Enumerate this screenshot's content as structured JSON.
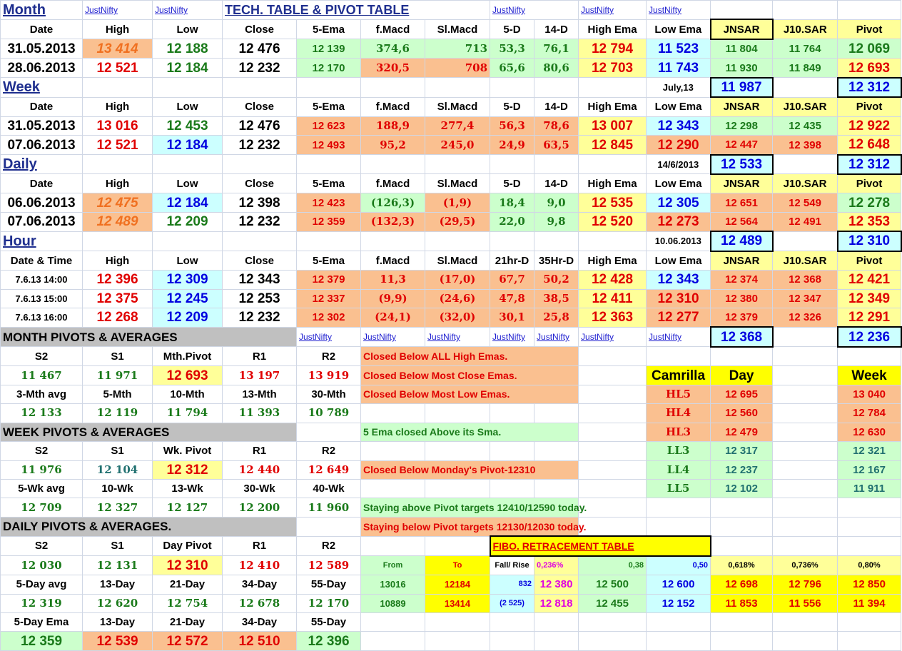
{
  "links": {
    "justnifty": "JustNifty"
  },
  "title": "TECH. TABLE   &  PIVOT TABLE",
  "sections": {
    "month": "Month",
    "week": "Week",
    "daily": "Daily",
    "hour": "Hour"
  },
  "headers": {
    "date": "Date",
    "datetime": "Date & Time",
    "high": "High",
    "low": "Low",
    "close": "Close",
    "ema5": "5-Ema",
    "fmacd": "f.Macd",
    "slmacd": "Sl.Macd",
    "d5": "5-D",
    "d14": "14-D",
    "hr21": "21hr-D",
    "hr35": "35Hr-D",
    "highema": "High Ema",
    "lowema": "Low Ema",
    "jnsar": "JNSAR",
    "j10sar": "J10.SAR",
    "pivot": "Pivot"
  },
  "month_rows": [
    [
      "31.05.2013",
      "13 414",
      "12 188",
      "12 476",
      "12 139",
      "374,6",
      "713",
      "53,3",
      "76,1",
      "12 794",
      "11 523",
      "11 804",
      "11 764",
      "12 069"
    ],
    [
      "28.06.2013",
      "12 521",
      "12 184",
      "12 232",
      "12 170",
      "320,5",
      "708",
      "65,6",
      "80,6",
      "12 703",
      "11 743",
      "11 930",
      "11 849",
      "12 693"
    ]
  ],
  "month_extra": {
    "label": "July,13",
    "jnsar": "11 987",
    "pivot": "12 312"
  },
  "week_rows": [
    [
      "31.05.2013",
      "13 016",
      "12 453",
      "12 476",
      "12 623",
      "188,9",
      "277,4",
      "56,3",
      "78,6",
      "13 007",
      "12 343",
      "12 298",
      "12 435",
      "12 922"
    ],
    [
      "07.06.2013",
      "12 521",
      "12 184",
      "12 232",
      "12 493",
      "95,2",
      "245,0",
      "24,9",
      "63,5",
      "12 845",
      "12 290",
      "12 447",
      "12 398",
      "12 648"
    ]
  ],
  "week_extra": {
    "label": "14/6/2013",
    "jnsar": "12 533",
    "pivot": "12 312"
  },
  "daily_rows": [
    [
      "06.06.2013",
      "12 475",
      "12 184",
      "12 398",
      "12 423",
      "(126,3)",
      "(1,9)",
      "18,4",
      "9,0",
      "12 535",
      "12 305",
      "12 651",
      "12 549",
      "12 278"
    ],
    [
      "07.06.2013",
      "12 489",
      "12 209",
      "12 232",
      "12 359",
      "(132,3)",
      "(29,5)",
      "22,0",
      "9,8",
      "12 520",
      "12 273",
      "12 564",
      "12 491",
      "12 353"
    ]
  ],
  "daily_extra": {
    "label": "10.06.2013",
    "jnsar": "12 489",
    "pivot": "12 310"
  },
  "hour_rows": [
    [
      "7.6.13 14:00",
      "12 396",
      "12 309",
      "12 343",
      "12 379",
      "11,3",
      "(17,0)",
      "67,7",
      "50,2",
      "12 428",
      "12 343",
      "12 374",
      "12 368",
      "12 421"
    ],
    [
      "7.6.13 15:00",
      "12 375",
      "12 245",
      "12 253",
      "12 337",
      "(9,9)",
      "(24,6)",
      "47,8",
      "38,5",
      "12 411",
      "12 310",
      "12 380",
      "12 347",
      "12 349"
    ],
    [
      "7.6.13 16:00",
      "12 268",
      "12 209",
      "12 232",
      "12 302",
      "(24,1)",
      "(32,0)",
      "30,1",
      "25,8",
      "12 363",
      "12 277",
      "12 379",
      "12 326",
      "12 291"
    ]
  ],
  "hour_extra": {
    "jnsar": "12 368",
    "pivot": "12 236"
  },
  "month_pivots": {
    "title": "MONTH  PIVOTS  &  AVERAGES",
    "labels": [
      "S2",
      "S1",
      "Mth.Pivot",
      "R1",
      "R2"
    ],
    "values": [
      "11 467",
      "11 971",
      "12 693",
      "13 197",
      "13 919"
    ],
    "avg_labels": [
      "3-Mth avg",
      "5-Mth",
      "10-Mth",
      "13-Mth",
      "30-Mth"
    ],
    "avg_values": [
      "12 133",
      "12 119",
      "11 794",
      "11 393",
      "10 789"
    ]
  },
  "week_pivots": {
    "title": "WEEK  PIVOTS  &  AVERAGES",
    "labels": [
      "S2",
      "S1",
      "Wk. Pivot",
      "R1",
      "R2"
    ],
    "values": [
      "11 976",
      "12 104",
      "12 312",
      "12 440",
      "12 649"
    ],
    "avg_labels": [
      "5-Wk avg",
      "10-Wk",
      "13-Wk",
      "30-Wk",
      "40-Wk"
    ],
    "avg_values": [
      "12 709",
      "12 327",
      "12 127",
      "12 200",
      "11 960"
    ]
  },
  "daily_pivots": {
    "title": "DAILY  PIVOTS  &  AVERAGES.",
    "labels": [
      "S2",
      "S1",
      "Day  Pivot",
      "R1",
      "R2"
    ],
    "values": [
      "12 030",
      "12 131",
      "12 310",
      "12 410",
      "12 589"
    ],
    "avg_labels": [
      "5-Day avg",
      "13-Day",
      "21-Day",
      "34-Day",
      "55-Day"
    ],
    "avg_values": [
      "12 319",
      "12 620",
      "12 754",
      "12 678",
      "12 170"
    ],
    "ema_labels": [
      "5-Day Ema",
      "13-Day",
      "21-Day",
      "34-Day",
      "55-Day"
    ],
    "ema_values": [
      "12 359",
      "12 539",
      "12 572",
      "12 510",
      "12 396"
    ]
  },
  "notes": [
    "Closed Below ALL High Emas.",
    "Closed Below Most Close Emas.",
    "Closed Below Most Low Emas.",
    "5 Ema closed Above its Sma.",
    "Closed Below Monday's Pivot-12310",
    "Staying above Pivot targets 12410/12590 today.",
    "Staying below Pivot targets 12130/12030 today."
  ],
  "camrilla": {
    "title": "Camrilla",
    "day": "Day",
    "week": "Week",
    "rows": [
      {
        "label": "HL5",
        "day": "12 695",
        "week": "13 040"
      },
      {
        "label": "HL4",
        "day": "12 560",
        "week": "12 784"
      },
      {
        "label": "HL3",
        "day": "12 479",
        "week": "12 630"
      },
      {
        "label": "LL3",
        "day": "12 317",
        "week": "12 321"
      },
      {
        "label": "LL4",
        "day": "12 237",
        "week": "12 167"
      },
      {
        "label": "LL5",
        "day": "12 102",
        "week": "11 911"
      }
    ]
  },
  "fibo": {
    "title": "FIBO. RETRACEMENT TABLE",
    "headers": [
      "From",
      "To",
      "Fall/ Rise",
      "0,236%",
      "0,38",
      "0,50",
      "0,618%",
      "0,736%",
      "0,80%"
    ],
    "rows": [
      [
        "13016",
        "12184",
        "832",
        "12 380",
        "12 500",
        "12 600",
        "12 698",
        "12 796",
        "12 850"
      ],
      [
        "10889",
        "13414",
        "(2 525)",
        "12 818",
        "12 455",
        "12 152",
        "11 853",
        "11 556",
        "11 394"
      ]
    ]
  },
  "colors": {
    "orange": "#fac090",
    "green": "#ccffcc",
    "yellow": "#ffff99",
    "cyan": "#ccffff",
    "bright_yellow": "#ffff00",
    "grey": "#c0c0c0"
  }
}
